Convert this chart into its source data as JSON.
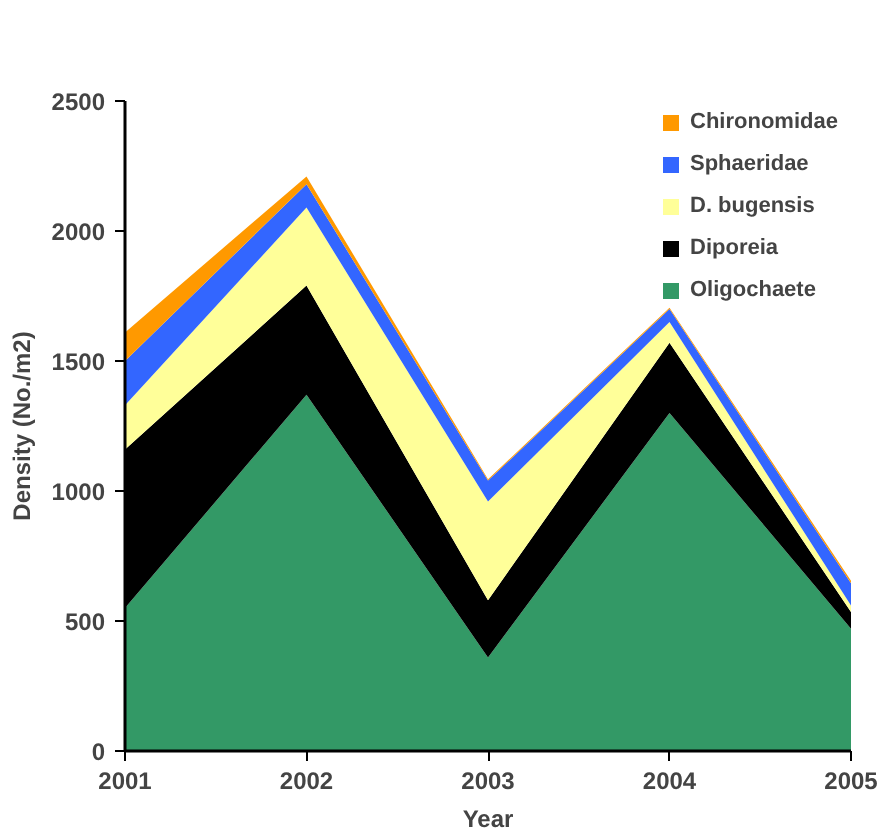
{
  "chart_data": {
    "type": "area",
    "stacked": true,
    "xlabel": "Year",
    "ylabel": "Density (No./m2)",
    "x": [
      2001,
      2002,
      2003,
      2004,
      2005
    ],
    "xlim": [
      2001,
      2005
    ],
    "xticks": [
      2001,
      2002,
      2003,
      2004,
      2005
    ],
    "ylim": [
      0,
      2500
    ],
    "yticks": [
      0,
      500,
      1000,
      1500,
      2000,
      2500
    ],
    "grid": false,
    "legend": "top right",
    "series": [
      {
        "name": "Oligochaete",
        "color": "#339966",
        "values": [
          550,
          1370,
          360,
          1300,
          470
        ]
      },
      {
        "name": "Diporeia",
        "color": "#000000",
        "values": [
          610,
          420,
          220,
          270,
          65
        ]
      },
      {
        "name": "D. bugensis",
        "color": "#ffff99",
        "values": [
          170,
          300,
          380,
          80,
          25
        ]
      },
      {
        "name": "Sphaeridae",
        "color": "#3366ff",
        "values": [
          170,
          90,
          80,
          50,
          85
        ]
      },
      {
        "name": "Chironomidae",
        "color": "#ff9900",
        "values": [
          110,
          30,
          5,
          5,
          10
        ]
      }
    ]
  }
}
